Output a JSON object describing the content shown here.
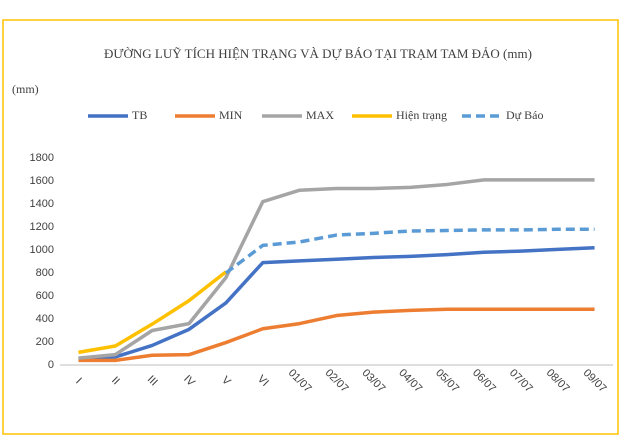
{
  "chart_data": {
    "type": "line",
    "title": "ĐƯỜNG LUỸ TÍCH HIỆN TRẠNG VÀ DỰ BÁO TẠI TRẠM TAM ĐẢO (mm)",
    "y_label": "(mm)",
    "categories": [
      "I",
      "II",
      "III",
      "IV",
      "V",
      "VI",
      "01/07",
      "02/07",
      "03/07",
      "04/07",
      "05/07",
      "06/07",
      "07/07",
      "08/07",
      "09/07"
    ],
    "series": [
      {
        "name": "TB",
        "color": "#4472c4",
        "dashed": false,
        "values": [
          50,
          70,
          170,
          310,
          540,
          890,
          905,
          920,
          935,
          945,
          960,
          980,
          990,
          1005,
          1020
        ]
      },
      {
        "name": "MIN",
        "color": "#ed7d31",
        "dashed": false,
        "values": [
          40,
          40,
          85,
          90,
          195,
          315,
          360,
          430,
          460,
          475,
          485,
          485,
          485,
          485,
          485
        ]
      },
      {
        "name": "MAX",
        "color": "#a5a5a5",
        "dashed": false,
        "values": [
          60,
          90,
          300,
          360,
          760,
          1420,
          1520,
          1535,
          1535,
          1545,
          1570,
          1610,
          1610,
          1610,
          1610
        ]
      },
      {
        "name": "Hiện trạng",
        "color": "#ffc000",
        "dashed": false,
        "values": [
          110,
          165,
          355,
          560,
          810,
          null,
          null,
          null,
          null,
          null,
          null,
          null,
          null,
          null,
          null
        ]
      },
      {
        "name": "Dự Báo",
        "color": "#5b9bd5",
        "dashed": true,
        "values": [
          null,
          null,
          null,
          null,
          800,
          1040,
          1070,
          1130,
          1145,
          1165,
          1170,
          1175,
          1175,
          1180,
          1180
        ]
      }
    ],
    "ylim": [
      0,
      1800
    ],
    "yticks": [
      0,
      200,
      400,
      600,
      800,
      1000,
      1200,
      1400,
      1600,
      1800
    ],
    "grid": false
  }
}
